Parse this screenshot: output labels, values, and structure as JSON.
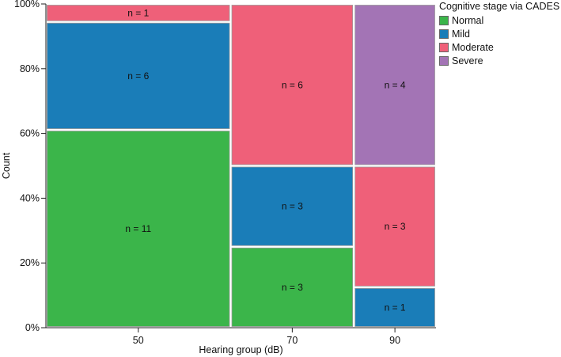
{
  "chart_data": {
    "type": "mosaic",
    "ylabel": "Count",
    "xlabel": "Hearing group (dB)",
    "y_tick_labels": [
      "0%",
      "20%",
      "40%",
      "60%",
      "80%",
      "100%"
    ],
    "ylim": [
      0,
      100
    ],
    "legend_placement": "top-right",
    "legend": {
      "title": "Cognitive stage via CADES",
      "items": [
        {
          "name": "Normal",
          "color": "#3bb54a"
        },
        {
          "name": "Mild",
          "color": "#1a7db8"
        },
        {
          "name": "Moderate",
          "color": "#ef6079"
        },
        {
          "name": "Severe",
          "color": "#a374b5"
        }
      ]
    },
    "groups": [
      {
        "label": "50",
        "segments": [
          {
            "stage": "Normal",
            "count": 11,
            "label": "n = 11"
          },
          {
            "stage": "Mild",
            "count": 6,
            "label": "n = 6"
          },
          {
            "stage": "Moderate",
            "count": 1,
            "label": "n = 1"
          }
        ]
      },
      {
        "label": "70",
        "segments": [
          {
            "stage": "Normal",
            "count": 3,
            "label": "n = 3"
          },
          {
            "stage": "Mild",
            "count": 3,
            "label": "n = 3"
          },
          {
            "stage": "Moderate",
            "count": 6,
            "label": "n = 6"
          }
        ]
      },
      {
        "label": "90",
        "segments": [
          {
            "stage": "Mild",
            "count": 1,
            "label": "n = 1"
          },
          {
            "stage": "Moderate",
            "count": 3,
            "label": "n = 3"
          },
          {
            "stage": "Severe",
            "count": 4,
            "label": "n = 4"
          }
        ]
      }
    ]
  }
}
